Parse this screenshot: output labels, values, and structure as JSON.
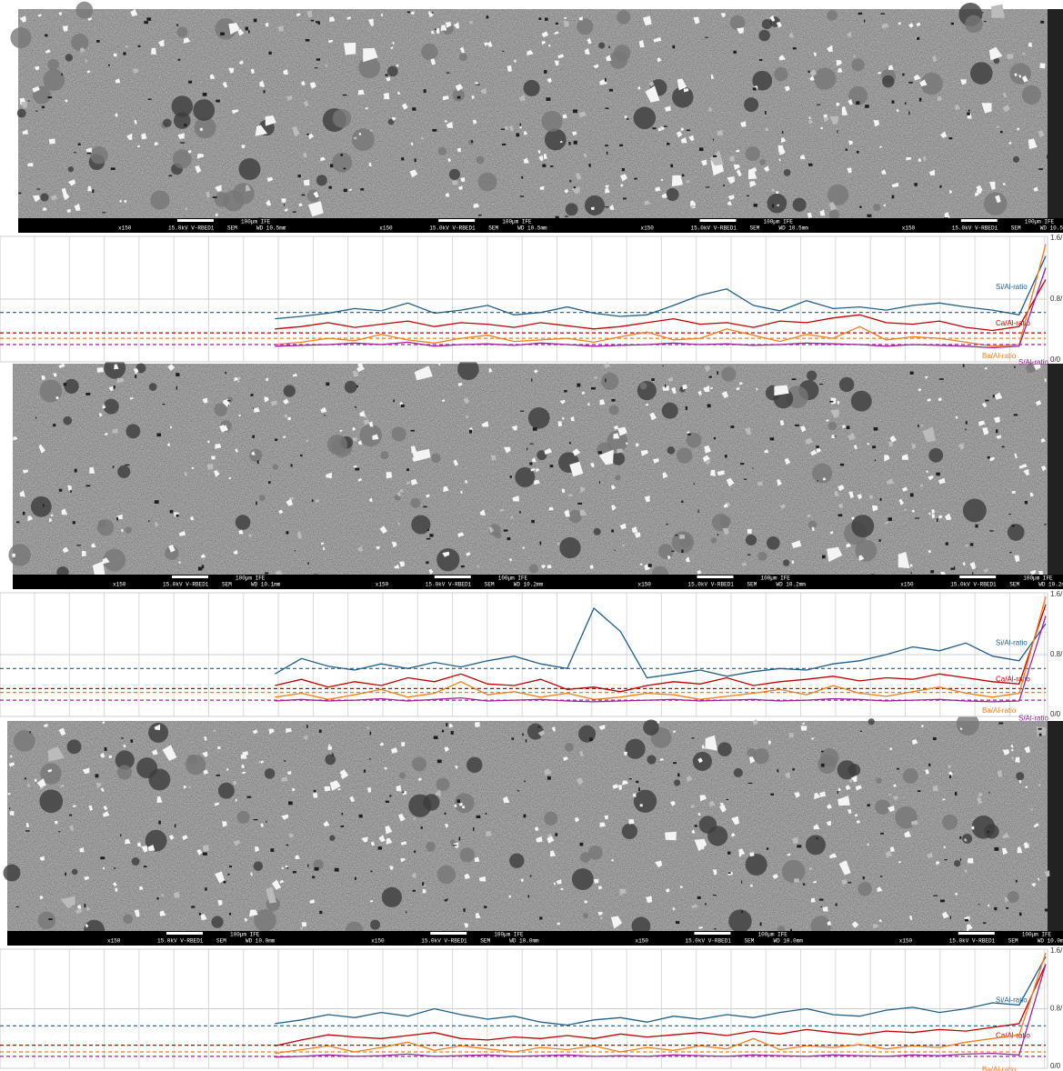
{
  "chart_data": [
    {
      "type": "line",
      "ylim": [
        0,
        1.6
      ],
      "yticks": [
        {
          "value": 0,
          "label": "0/0"
        },
        {
          "value": 0.8,
          "label": "0.8/"
        },
        {
          "value": 1.6,
          "label": "1.6/"
        }
      ],
      "grid": true,
      "series": [
        {
          "name": "Si/Al-ratio",
          "color": "#1f5f8b",
          "mean": 0.63,
          "values": [
            null,
            null,
            null,
            null,
            null,
            null,
            null,
            null,
            null,
            null,
            0.55,
            0.58,
            0.62,
            0.68,
            0.65,
            0.75,
            0.62,
            0.66,
            0.72,
            0.6,
            0.63,
            0.7,
            0.62,
            0.58,
            0.6,
            0.72,
            0.85,
            0.93,
            0.72,
            0.65,
            0.78,
            0.68,
            0.7,
            0.66,
            0.72,
            0.75,
            0.7,
            0.66,
            0.6,
            1.35
          ]
        },
        {
          "name": "Ca/Al-ratio",
          "color": "#c00000",
          "mean": 0.37,
          "values": [
            null,
            null,
            null,
            null,
            null,
            null,
            null,
            null,
            null,
            null,
            0.42,
            0.45,
            0.5,
            0.44,
            0.48,
            0.52,
            0.45,
            0.5,
            0.48,
            0.44,
            0.5,
            0.46,
            0.42,
            0.45,
            0.5,
            0.55,
            0.48,
            0.5,
            0.44,
            0.52,
            0.5,
            0.56,
            0.6,
            0.5,
            0.48,
            0.52,
            0.44,
            0.4,
            0.45,
            1.05
          ]
        },
        {
          "name": "Ba/Al-ratio",
          "color": "#f07f1e",
          "mean": 0.3,
          "values": [
            null,
            null,
            null,
            null,
            null,
            null,
            null,
            null,
            null,
            null,
            0.22,
            0.25,
            0.3,
            0.27,
            0.35,
            0.28,
            0.24,
            0.3,
            0.34,
            0.26,
            0.28,
            0.3,
            0.25,
            0.32,
            0.38,
            0.28,
            0.3,
            0.42,
            0.34,
            0.26,
            0.35,
            0.3,
            0.45,
            0.28,
            0.32,
            0.3,
            0.25,
            0.2,
            0.22,
            1.5
          ]
        },
        {
          "name": "S/Al-ratio",
          "color": "#a020a0",
          "mean": 0.22,
          "values": [
            null,
            null,
            null,
            null,
            null,
            null,
            null,
            null,
            null,
            null,
            0.2,
            0.21,
            0.22,
            0.24,
            0.22,
            0.25,
            0.2,
            0.22,
            0.23,
            0.21,
            0.24,
            0.22,
            0.2,
            0.21,
            0.22,
            0.24,
            0.22,
            0.23,
            0.21,
            0.22,
            0.24,
            0.23,
            0.22,
            0.2,
            0.22,
            0.21,
            0.2,
            0.18,
            0.2,
            1.2
          ]
        }
      ]
    },
    {
      "type": "line",
      "ylim": [
        0,
        1.6
      ],
      "yticks": [
        {
          "value": 0,
          "label": "0/0"
        },
        {
          "value": 0.8,
          "label": "0.8/"
        },
        {
          "value": 1.6,
          "label": "1.6/"
        }
      ],
      "grid": true,
      "series": [
        {
          "name": "Si/Al-ratio",
          "color": "#1f5f8b",
          "mean": 0.62,
          "values": [
            null,
            null,
            null,
            null,
            null,
            null,
            null,
            null,
            null,
            null,
            0.55,
            0.75,
            0.65,
            0.6,
            0.68,
            0.62,
            0.7,
            0.64,
            0.72,
            0.78,
            0.68,
            0.62,
            1.4,
            1.1,
            0.5,
            0.55,
            0.6,
            0.52,
            0.58,
            0.62,
            0.6,
            0.68,
            0.72,
            0.8,
            0.9,
            0.85,
            0.95,
            0.78,
            0.72,
            1.2
          ]
        },
        {
          "name": "Ca/Al-ratio",
          "color": "#c00000",
          "mean": 0.36,
          "values": [
            null,
            null,
            null,
            null,
            null,
            null,
            null,
            null,
            null,
            null,
            0.4,
            0.48,
            0.38,
            0.45,
            0.4,
            0.5,
            0.45,
            0.55,
            0.42,
            0.4,
            0.48,
            0.35,
            0.38,
            0.32,
            0.4,
            0.45,
            0.42,
            0.5,
            0.4,
            0.45,
            0.48,
            0.52,
            0.46,
            0.5,
            0.48,
            0.55,
            0.5,
            0.45,
            0.42,
            1.45
          ]
        },
        {
          "name": "Ba/Al-ratio",
          "color": "#f07f1e",
          "mean": 0.31,
          "values": [
            null,
            null,
            null,
            null,
            null,
            null,
            null,
            null,
            null,
            null,
            0.25,
            0.3,
            0.22,
            0.28,
            0.35,
            0.25,
            0.3,
            0.45,
            0.28,
            0.32,
            0.25,
            0.3,
            0.22,
            0.25,
            0.3,
            0.28,
            0.22,
            0.26,
            0.3,
            0.35,
            0.28,
            0.4,
            0.3,
            0.26,
            0.32,
            0.38,
            0.3,
            0.25,
            0.3,
            1.55
          ]
        },
        {
          "name": "S/Al-ratio",
          "color": "#a020a0",
          "mean": 0.21,
          "values": [
            null,
            null,
            null,
            null,
            null,
            null,
            null,
            null,
            null,
            null,
            0.2,
            0.22,
            0.2,
            0.21,
            0.23,
            0.2,
            0.22,
            0.24,
            0.2,
            0.21,
            0.22,
            0.2,
            0.19,
            0.2,
            0.21,
            0.22,
            0.2,
            0.21,
            0.22,
            0.2,
            0.21,
            0.23,
            0.22,
            0.2,
            0.21,
            0.22,
            0.2,
            0.19,
            0.2,
            1.3
          ]
        }
      ]
    },
    {
      "type": "line",
      "ylim": [
        0,
        1.6
      ],
      "yticks": [
        {
          "value": 0,
          "label": "0/0"
        },
        {
          "value": 0.8,
          "label": "0.8/"
        },
        {
          "value": 1.6,
          "label": "1.6/"
        }
      ],
      "grid": true,
      "series": [
        {
          "name": "Si/Al-ratio",
          "color": "#1f5f8b",
          "mean": 0.57,
          "values": [
            null,
            null,
            null,
            null,
            null,
            null,
            null,
            null,
            null,
            null,
            0.6,
            0.65,
            0.72,
            0.68,
            0.75,
            0.7,
            0.8,
            0.72,
            0.66,
            0.7,
            0.62,
            0.58,
            0.65,
            0.68,
            0.62,
            0.7,
            0.66,
            0.72,
            0.68,
            0.75,
            0.8,
            0.72,
            0.7,
            0.78,
            0.82,
            0.75,
            0.8,
            0.88,
            0.85,
            1.5
          ]
        },
        {
          "name": "Ca/Al-ratio",
          "color": "#c00000",
          "mean": 0.31,
          "values": [
            null,
            null,
            null,
            null,
            null,
            null,
            null,
            null,
            null,
            null,
            0.3,
            0.38,
            0.45,
            0.42,
            0.4,
            0.44,
            0.48,
            0.4,
            0.38,
            0.42,
            0.4,
            0.44,
            0.4,
            0.46,
            0.42,
            0.45,
            0.48,
            0.44,
            0.5,
            0.46,
            0.52,
            0.48,
            0.45,
            0.5,
            0.48,
            0.52,
            0.5,
            0.55,
            0.6,
            1.4
          ]
        },
        {
          "name": "Ba/Al-ratio",
          "color": "#f07f1e",
          "mean": 0.22,
          "values": [
            null,
            null,
            null,
            null,
            null,
            null,
            null,
            null,
            null,
            null,
            0.2,
            0.25,
            0.3,
            0.22,
            0.28,
            0.35,
            0.24,
            0.3,
            0.26,
            0.22,
            0.28,
            0.25,
            0.3,
            0.22,
            0.28,
            0.24,
            0.3,
            0.26,
            0.4,
            0.25,
            0.3,
            0.28,
            0.32,
            0.26,
            0.3,
            0.28,
            0.35,
            0.4,
            0.45,
            1.55
          ]
        },
        {
          "name": "S/Al-ratio",
          "color": "#a020a0",
          "mean": 0.16,
          "values": [
            null,
            null,
            null,
            null,
            null,
            null,
            null,
            null,
            null,
            null,
            0.15,
            0.16,
            0.18,
            0.16,
            0.17,
            0.19,
            0.16,
            0.17,
            0.18,
            0.16,
            0.17,
            0.18,
            0.16,
            0.17,
            0.16,
            0.18,
            0.17,
            0.16,
            0.18,
            0.17,
            0.16,
            0.18,
            0.17,
            0.16,
            0.18,
            0.17,
            0.19,
            0.2,
            0.18,
            1.4
          ]
        }
      ]
    }
  ],
  "sem_panels": [
    {
      "bars": [
        {
          "mag": "x150",
          "beam": "15.0kV V-RBED1",
          "mode": "SEM",
          "scale": "100µm IFE",
          "wd": "WD 10.5mm"
        },
        {
          "mag": "x150",
          "beam": "15.0kV V-RBED1",
          "mode": "SEM",
          "scale": "100µm IFE",
          "wd": "WD 10.5mm"
        },
        {
          "mag": "x150",
          "beam": "15.0kV V-RBED1",
          "mode": "SEM",
          "scale": "100µm IFE",
          "wd": "WD 10.5mm"
        },
        {
          "mag": "x150",
          "beam": "15.0kV V-RBED1",
          "mode": "SEM",
          "scale": "100µm IFE",
          "wd": "WD 10.5"
        }
      ]
    },
    {
      "bars": [
        {
          "mag": "x150",
          "beam": "15.0kV V-RBED1",
          "mode": "SEM",
          "scale": "100µm IFE",
          "wd": "WD 10.1mm"
        },
        {
          "mag": "x150",
          "beam": "15.0kV V-RBED1",
          "mode": "SEM",
          "scale": "100µm IFE",
          "wd": "WD 10.2mm"
        },
        {
          "mag": "x150",
          "beam": "15.0kV V-RBED1",
          "mode": "SEM",
          "scale": "100µm IFE",
          "wd": "WD 10.2mm"
        },
        {
          "mag": "x150",
          "beam": "15.0kV V-RBED1",
          "mode": "SEM",
          "scale": "100µm IFE",
          "wd": "WD 10.2mm"
        }
      ]
    },
    {
      "bars": [
        {
          "mag": "x150",
          "beam": "15.0kV V-RBED1",
          "mode": "SEM",
          "scale": "100µm IFE",
          "wd": "WD 10.0mm"
        },
        {
          "mag": "x150",
          "beam": "15.0kV V-RBED1",
          "mode": "SEM",
          "scale": "100µm IFE",
          "wd": "WD 10.0mm"
        },
        {
          "mag": "x150",
          "beam": "15.0kV V-RBED1",
          "mode": "SEM",
          "scale": "100µm IFE",
          "wd": "WD 10.0mm"
        },
        {
          "mag": "x150",
          "beam": "15.0kV V-RBED1",
          "mode": "SEM",
          "scale": "100µm IFE",
          "wd": "WD 10.0mm"
        }
      ]
    }
  ]
}
